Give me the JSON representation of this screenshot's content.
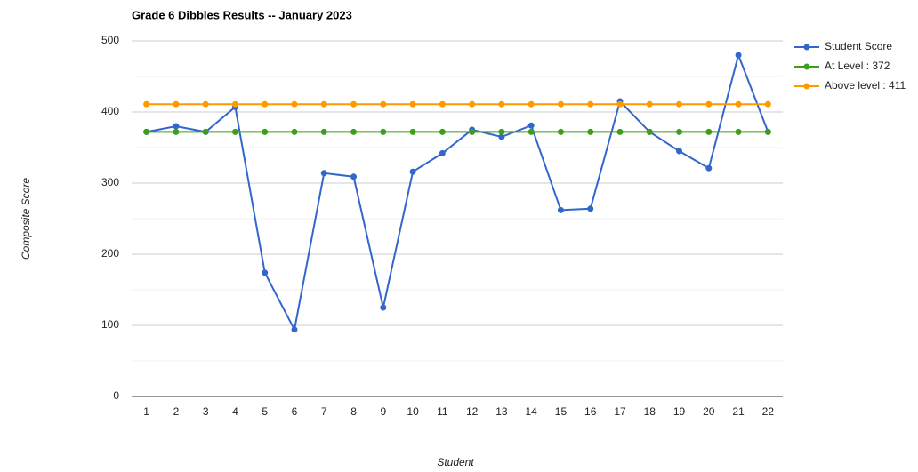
{
  "chart_data": {
    "type": "line",
    "title": "Grade 6 Dibbles Results -- January 2023",
    "x_label": "Student",
    "y_label": "Composite Score",
    "categories": [
      "1",
      "2",
      "3",
      "4",
      "5",
      "6",
      "7",
      "8",
      "9",
      "10",
      "11",
      "12",
      "13",
      "14",
      "15",
      "16",
      "17",
      "18",
      "19",
      "20",
      "21",
      "22"
    ],
    "series": [
      {
        "name": "Student Score",
        "color": "#3366cc",
        "values": [
          372,
          380,
          372,
          407,
          174,
          94,
          314,
          309,
          125,
          316,
          342,
          375,
          365,
          381,
          262,
          264,
          415,
          372,
          345,
          321,
          480,
          372
        ]
      },
      {
        "name": "At Level : 372",
        "color": "#3c9e1a",
        "values": [
          372,
          372,
          372,
          372,
          372,
          372,
          372,
          372,
          372,
          372,
          372,
          372,
          372,
          372,
          372,
          372,
          372,
          372,
          372,
          372,
          372,
          372
        ]
      },
      {
        "name": "Above level : 411",
        "color": "#ff9900",
        "values": [
          411,
          411,
          411,
          411,
          411,
          411,
          411,
          411,
          411,
          411,
          411,
          411,
          411,
          411,
          411,
          411,
          411,
          411,
          411,
          411,
          411,
          411
        ]
      }
    ],
    "ylim": [
      0,
      500
    ],
    "yticks": [
      0,
      100,
      200,
      300,
      400,
      500
    ],
    "minor_yticks": [
      50,
      150,
      250,
      350,
      450
    ],
    "grid": true,
    "legend": "right"
  }
}
